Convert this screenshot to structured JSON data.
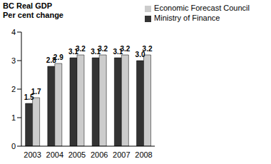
{
  "chart_data": {
    "type": "bar",
    "title": "BC Real GDP",
    "subtitle": "Per cent change",
    "categories": [
      "2003",
      "2004",
      "2005",
      "2006",
      "2007",
      "2008"
    ],
    "series": [
      {
        "name": "Ministry of Finance",
        "color": "#333333",
        "values": [
          1.5,
          2.8,
          3.1,
          3.1,
          3.1,
          3.0
        ],
        "value_labels": [
          "1.5",
          "2.8",
          "3.1",
          "3.1",
          "3.1",
          "3.0"
        ]
      },
      {
        "name": "Economic Forecast Council",
        "color": "#cccccc",
        "values": [
          1.7,
          2.9,
          3.2,
          3.2,
          3.2,
          3.2
        ],
        "value_labels": [
          "1.7",
          "2.9",
          "3.2",
          "3.2",
          "3.2",
          "3.2"
        ]
      }
    ],
    "ylim": [
      0,
      4
    ],
    "yticks": [
      0,
      1,
      2,
      3,
      4
    ],
    "grid": false,
    "legend": "top-right",
    "data_labels": true
  }
}
